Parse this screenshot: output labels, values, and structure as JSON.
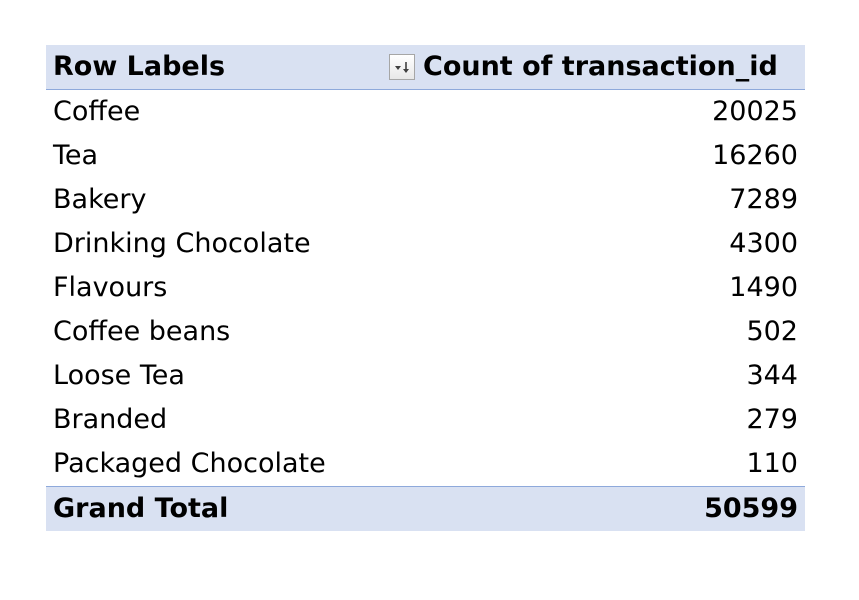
{
  "pivot": {
    "header": {
      "row_labels": "Row Labels",
      "value_field": "Count of transaction_id",
      "filter_button_icon": "sort-filter-dropdown-icon"
    },
    "rows": [
      {
        "label": "Coffee",
        "value": "20025"
      },
      {
        "label": "Tea",
        "value": "16260"
      },
      {
        "label": "Bakery",
        "value": "7289"
      },
      {
        "label": "Drinking Chocolate",
        "value": "4300"
      },
      {
        "label": "Flavours",
        "value": "1490"
      },
      {
        "label": "Coffee beans",
        "value": "502"
      },
      {
        "label": "Loose Tea",
        "value": "344"
      },
      {
        "label": "Branded",
        "value": "279"
      },
      {
        "label": "Packaged Chocolate",
        "value": "110"
      }
    ],
    "grand_total": {
      "label": "Grand Total",
      "value": "50599"
    },
    "colors": {
      "header_fill": "#d9e1f2",
      "border": "#8ea9db"
    }
  }
}
